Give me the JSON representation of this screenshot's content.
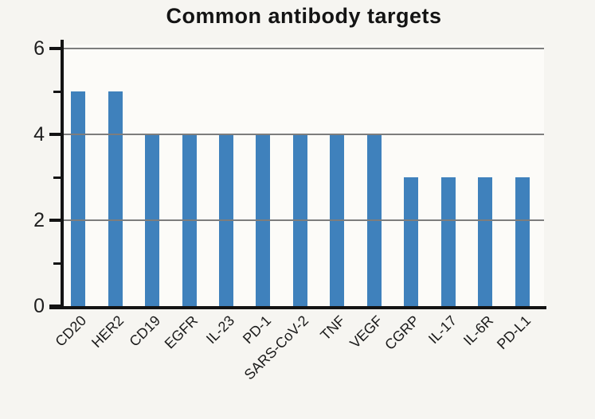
{
  "page": {
    "background_color": "#f6f5f1",
    "plot_background_color": "#fcfbf8"
  },
  "chart_data": {
    "type": "bar",
    "title": "Common antibody targets",
    "categories": [
      "CD20",
      "HER2",
      "CD19",
      "EGFR",
      "IL-23",
      "PD-1",
      "SARS-CoV-2",
      "TNF",
      "VEGF",
      "CGRP",
      "IL-17",
      "IL-6R",
      "PD-L1"
    ],
    "values": [
      5,
      5,
      4,
      4,
      4,
      4,
      4,
      4,
      4,
      3,
      3,
      3,
      3
    ],
    "xlabel": "",
    "ylabel": "",
    "ylim": [
      0,
      6
    ],
    "y_major_ticks": [
      0,
      2,
      4,
      6
    ],
    "y_minor_ticks": [
      1,
      3,
      5
    ],
    "gridlines_at": [
      2,
      4,
      6
    ],
    "grid": true,
    "legend": false,
    "bar_color": "#3f81bc",
    "axis_color": "#131313",
    "gridline_color": "#7d7d7d",
    "x_tick_rotation_deg": 45
  }
}
